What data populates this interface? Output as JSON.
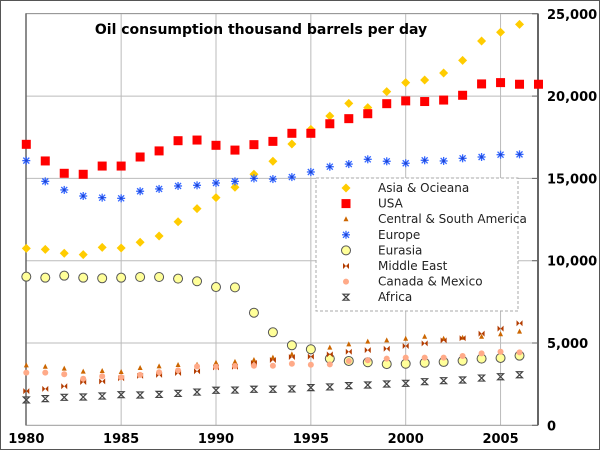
{
  "chart_data": {
    "type": "scatter",
    "title": "Oil consumption thousand barrels per day",
    "xlabel": "",
    "ylabel": "",
    "xlim": [
      1980,
      2007
    ],
    "ylim": [
      0,
      25000
    ],
    "x_ticks": [
      "1980",
      "1985",
      "1990",
      "1995",
      "2000",
      "2005"
    ],
    "y_ticks": [
      "0",
      "5,000",
      "10,000",
      "15,000",
      "20,000",
      "25,000"
    ],
    "y_axis_side": "right",
    "grid": true,
    "legend_position": "center-right",
    "x": [
      1980,
      1981,
      1982,
      1983,
      1984,
      1985,
      1986,
      1987,
      1988,
      1989,
      1990,
      1991,
      1992,
      1993,
      1994,
      1995,
      1996,
      1997,
      1998,
      1999,
      2000,
      2001,
      2002,
      2003,
      2004,
      2005,
      2006,
      2007
    ],
    "series": [
      {
        "name": "Asia & Ocieana",
        "color": "#ffcc00",
        "marker": "diamond",
        "values": [
          10750,
          10690,
          10450,
          10370,
          10810,
          10770,
          11120,
          11500,
          12370,
          13160,
          13830,
          14460,
          15250,
          16040,
          17090,
          17980,
          18790,
          19560,
          19300,
          20270,
          20820,
          20980,
          21400,
          22170,
          23350,
          23880,
          24360,
          null
        ]
      },
      {
        "name": "USA",
        "color": "#ff0000",
        "marker": "square",
        "values": [
          17070,
          16060,
          15310,
          15250,
          15750,
          15750,
          16300,
          16670,
          17290,
          17330,
          17010,
          16720,
          17050,
          17250,
          17740,
          17740,
          18320,
          18630,
          18930,
          19540,
          19710,
          19670,
          19760,
          20050,
          20740,
          20820,
          20720,
          20720
        ]
      },
      {
        "name": "Central & South America",
        "color": "#cc6600",
        "marker": "triangle",
        "values": [
          3640,
          3560,
          3440,
          3260,
          3300,
          3240,
          3480,
          3580,
          3660,
          3680,
          3800,
          3850,
          3970,
          4110,
          4310,
          4450,
          4720,
          4920,
          5080,
          5160,
          5260,
          5380,
          5260,
          5320,
          5380,
          5530,
          5690,
          null
        ]
      },
      {
        "name": "Europe",
        "color": "#3366ff",
        "marker": "asterisk",
        "values": [
          16080,
          14820,
          14300,
          13930,
          13830,
          13790,
          14220,
          14360,
          14540,
          14580,
          14720,
          14820,
          15000,
          14960,
          15080,
          15390,
          15710,
          15870,
          16160,
          16040,
          15920,
          16100,
          16060,
          16220,
          16300,
          16440,
          16460,
          null
        ]
      },
      {
        "name": "Eurasia",
        "color": "#ffff99",
        "marker": "circle",
        "values": [
          9030,
          8970,
          9090,
          8970,
          8930,
          8970,
          9010,
          9010,
          8910,
          8750,
          8400,
          8380,
          6840,
          5650,
          4860,
          4620,
          4050,
          3910,
          3830,
          3720,
          3740,
          3800,
          3850,
          3920,
          4050,
          4090,
          4230,
          null
        ]
      },
      {
        "name": "Middle East",
        "color": "#b33c00",
        "marker": "bowtie",
        "values": [
          2080,
          2210,
          2370,
          2630,
          2670,
          2860,
          3000,
          3060,
          3180,
          3280,
          3520,
          3560,
          3790,
          3970,
          4150,
          4170,
          4310,
          4470,
          4570,
          4650,
          4820,
          4980,
          5160,
          5290,
          5570,
          5870,
          6200,
          null
        ]
      },
      {
        "name": "Canada & Mexico",
        "color": "#ffaa88",
        "marker": "smallcircle",
        "values": [
          3200,
          3200,
          3100,
          2830,
          2980,
          2920,
          3060,
          3220,
          3340,
          3580,
          3560,
          3600,
          3620,
          3620,
          3740,
          3680,
          3700,
          3910,
          3950,
          4050,
          4110,
          4110,
          4110,
          4210,
          4370,
          4470,
          4430,
          null
        ]
      },
      {
        "name": "Africa",
        "color": "#444444",
        "marker": "hourglass",
        "values": [
          1540,
          1620,
          1700,
          1720,
          1780,
          1860,
          1840,
          1880,
          1940,
          2020,
          2130,
          2140,
          2190,
          2190,
          2210,
          2290,
          2330,
          2410,
          2450,
          2510,
          2550,
          2650,
          2710,
          2750,
          2870,
          2950,
          3070,
          null
        ]
      }
    ]
  }
}
